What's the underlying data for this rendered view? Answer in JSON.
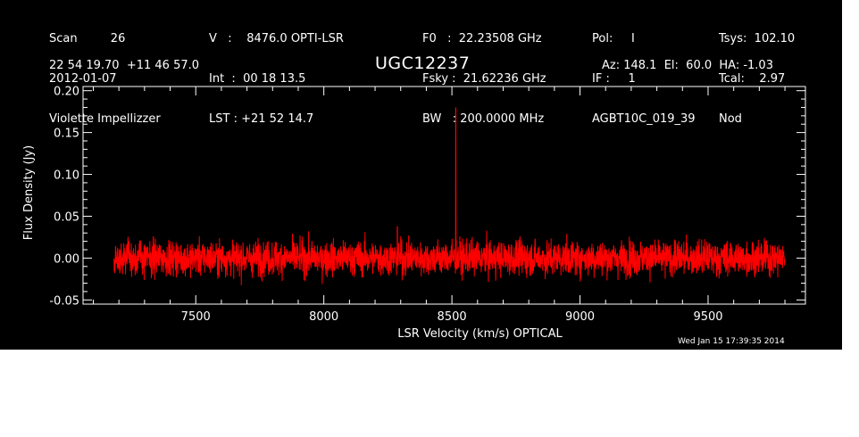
{
  "header": {
    "col1": [
      "Scan         26",
      "2012-01-07",
      "Violette Impellizzer"
    ],
    "col2": [
      "V   :    8476.0 OPTI-LSR",
      "Int  :  00 18 13.5",
      "LST : +21 52 14.7"
    ],
    "col3": [
      "F0   :  22.23508 GHz",
      "Fsky :  21.62236 GHz",
      "BW   : 200.0000 MHz"
    ],
    "col4": [
      "Pol:     I",
      "IF :     1",
      "AGBT10C_019_39"
    ],
    "col5": [
      "Tsys:  102.10",
      "Tcal:    2.97",
      "Nod"
    ],
    "coords": "22 54 19.70  +11 46 57.0",
    "source": "UGC12237",
    "azel": "Az: 148.1  El:  60.0  HA: -1.03",
    "timestamp": "Wed Jan 15 17:39:35 2014"
  },
  "colors": {
    "background": "#000000",
    "axes": "#ffffff",
    "trace": "#ff0000"
  },
  "chart_data": {
    "type": "line",
    "xlabel": "LSR Velocity (km/s) OPTICAL",
    "ylabel": "Flux Density (Jy)",
    "xlim": [
      7060,
      9880
    ],
    "ylim": [
      -0.055,
      0.205
    ],
    "x_ticks": [
      7500,
      8000,
      8500,
      9000,
      9500
    ],
    "y_ticks": [
      -0.05,
      0.0,
      0.05,
      0.1,
      0.15,
      0.2
    ],
    "y_tick_labels": [
      "-0.05",
      "0.00",
      "0.05",
      "0.10",
      "0.15",
      "0.20"
    ],
    "series": [
      {
        "x_range": [
          7180,
          9800
        ],
        "baseline": 0.0,
        "noise_rms": 0.012,
        "peaks": [
          {
            "x": 8515,
            "y": 0.18
          },
          {
            "x": 8287,
            "y": 0.038
          }
        ]
      }
    ]
  }
}
